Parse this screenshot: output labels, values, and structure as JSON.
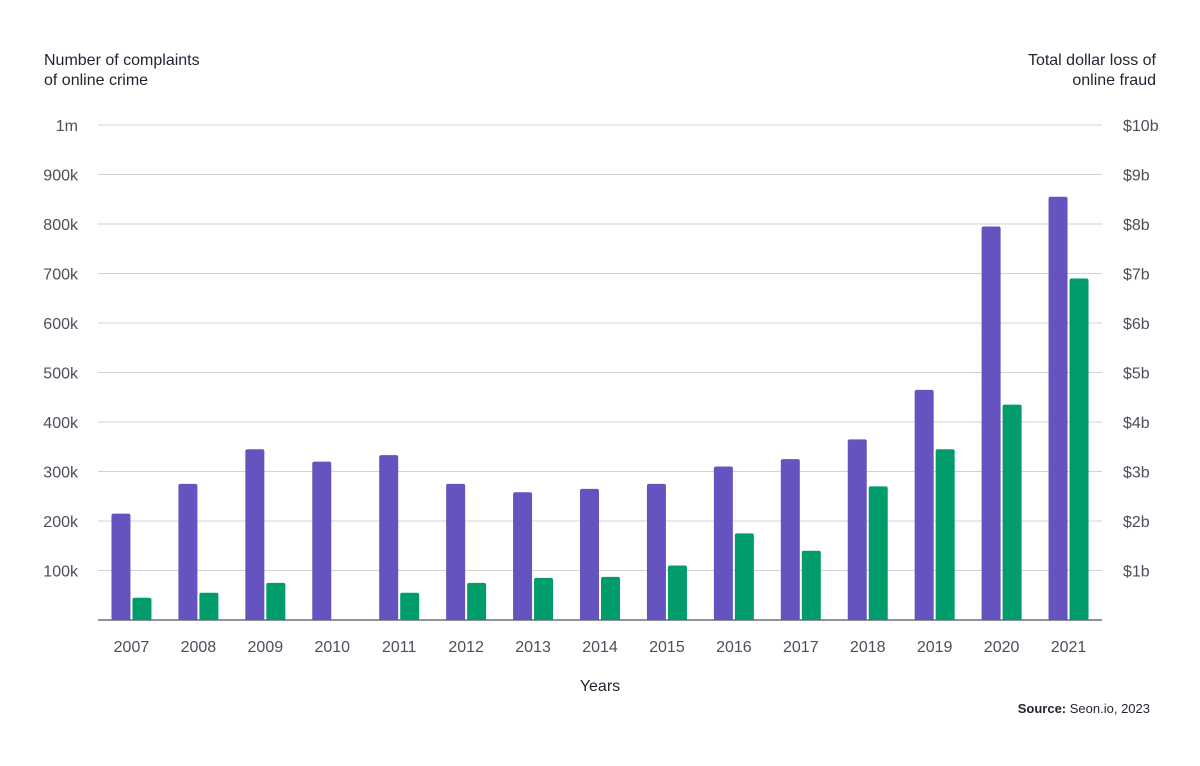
{
  "chart_data": {
    "type": "bar",
    "categories": [
      "2007",
      "2008",
      "2009",
      "2010",
      "2011",
      "2012",
      "2013",
      "2014",
      "2015",
      "2016",
      "2017",
      "2018",
      "2019",
      "2020",
      "2021"
    ],
    "series": [
      {
        "axis": "left",
        "color": "#6554c0",
        "values": [
          215000,
          275000,
          345000,
          320000,
          333000,
          275000,
          258000,
          265000,
          275000,
          310000,
          325000,
          365000,
          465000,
          795000,
          855000
        ]
      },
      {
        "axis": "right",
        "color": "#009c6b",
        "values": [
          0.45,
          0.55,
          0.75,
          0,
          0.55,
          0.75,
          0.85,
          0.87,
          1.1,
          1.75,
          1.4,
          2.7,
          3.45,
          4.35,
          6.9
        ]
      }
    ],
    "left_axis_title": [
      "Number of complaints",
      "of online crime"
    ],
    "right_axis_title": [
      "Total dollar loss of",
      "online fraud"
    ],
    "xlabel": "Years",
    "left_ticks": [
      "100k",
      "200k",
      "300k",
      "400k",
      "500k",
      "600k",
      "700k",
      "800k",
      "900k",
      "1m"
    ],
    "right_ticks": [
      "$1b",
      "$2b",
      "$3b",
      "$4b",
      "$5b",
      "$6b",
      "$7b",
      "$8b",
      "$9b",
      "$10b"
    ],
    "left_ylim": [
      0,
      1000000
    ],
    "right_ylim": [
      0,
      10
    ],
    "grid": true,
    "source_label": "Source:",
    "source_text": "Seon.io, 2023"
  }
}
